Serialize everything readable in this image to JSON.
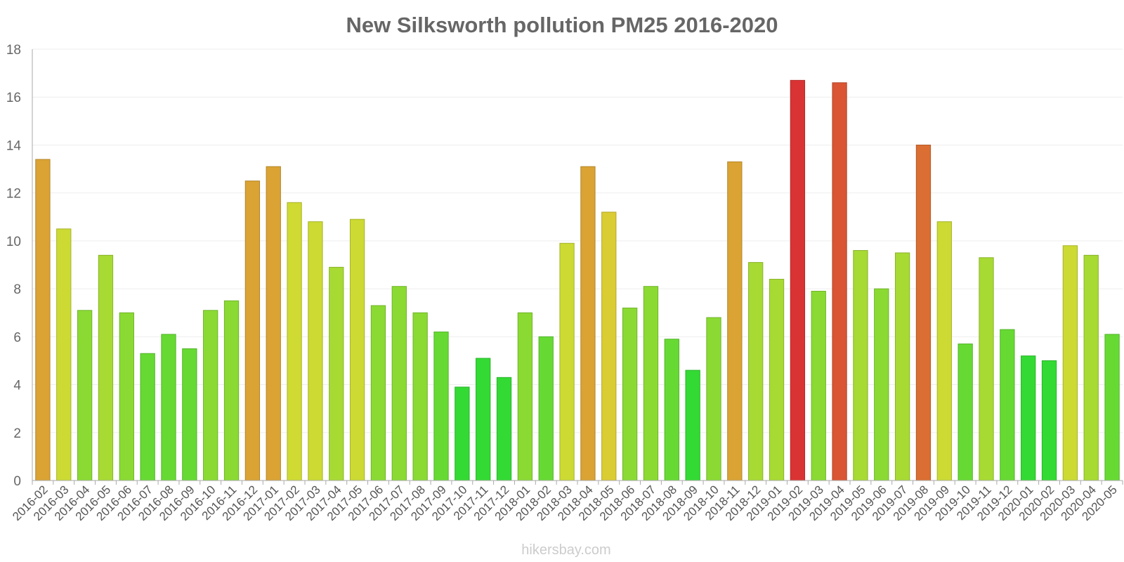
{
  "chart_data": {
    "type": "bar",
    "title": "New Silksworth pollution PM25 2016-2020",
    "xlabel": "",
    "ylabel": "",
    "ylim": [
      0,
      18
    ],
    "yticks": [
      "0",
      "2",
      "4",
      "6",
      "8",
      "10",
      "12",
      "14",
      "16",
      "18"
    ],
    "categories": [
      "2016-02",
      "2016-03",
      "2016-04",
      "2016-05",
      "2016-06",
      "2016-07",
      "2016-08",
      "2016-09",
      "2016-10",
      "2016-11",
      "2016-12",
      "2017-01",
      "2017-02",
      "2017-03",
      "2017-04",
      "2017-05",
      "2017-06",
      "2017-07",
      "2017-08",
      "2017-09",
      "2017-10",
      "2017-11",
      "2017-12",
      "2018-01",
      "2018-02",
      "2018-03",
      "2018-04",
      "2018-05",
      "2018-06",
      "2018-07",
      "2018-08",
      "2018-09",
      "2018-10",
      "2018-11",
      "2018-12",
      "2019-01",
      "2019-02",
      "2019-03",
      "2019-04",
      "2019-05",
      "2019-06",
      "2019-07",
      "2019-08",
      "2019-09",
      "2019-10",
      "2019-11",
      "2019-12",
      "2020-01",
      "2020-02",
      "2020-03",
      "2020-04",
      "2020-05"
    ],
    "values": [
      13.4,
      10.5,
      7.1,
      9.4,
      7.0,
      5.3,
      6.1,
      5.5,
      7.1,
      7.5,
      12.5,
      13.1,
      11.6,
      10.8,
      8.9,
      10.9,
      7.3,
      8.1,
      7.0,
      6.2,
      3.9,
      5.1,
      4.3,
      7.0,
      6.0,
      9.9,
      13.1,
      11.2,
      7.2,
      8.1,
      5.9,
      4.6,
      6.8,
      13.3,
      9.1,
      8.4,
      16.7,
      7.9,
      16.6,
      9.6,
      8.0,
      9.5,
      14.0,
      10.8,
      5.7,
      9.3,
      6.3,
      5.2,
      5.0,
      9.8,
      9.4,
      6.1
    ],
    "colors": [
      "#daa333",
      "#ccda33",
      "#8ada33",
      "#a7da33",
      "#8ada33",
      "#66da33",
      "#66da33",
      "#66da33",
      "#8ada33",
      "#8ada33",
      "#daa333",
      "#daa333",
      "#cfda33",
      "#ccda33",
      "#a7da33",
      "#ccda33",
      "#8ada33",
      "#8ada33",
      "#8ada33",
      "#66da33",
      "#33da33",
      "#33da33",
      "#33da33",
      "#8ada33",
      "#66da33",
      "#ccda33",
      "#daa333",
      "#dacc33",
      "#8ada33",
      "#8ada33",
      "#66da33",
      "#33da33",
      "#8ada33",
      "#daa333",
      "#a7da33",
      "#a7da33",
      "#da3333",
      "#8ada33",
      "#da5533",
      "#a7da33",
      "#8ada33",
      "#a7da33",
      "#da6e33",
      "#ccda33",
      "#66da33",
      "#a7da33",
      "#66da33",
      "#33da33",
      "#33da33",
      "#ccda33",
      "#a7da33",
      "#66da33"
    ],
    "grid": true,
    "legend": "none",
    "credit": "hikersbay.com"
  }
}
